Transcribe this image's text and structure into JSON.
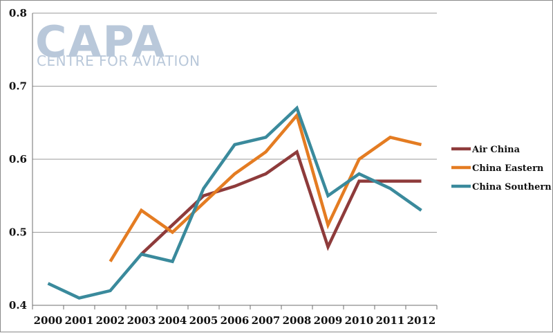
{
  "logo": {
    "name": "CAPA",
    "tagline": "CENTRE FOR AVIATION"
  },
  "chart_data": {
    "type": "line",
    "title": "",
    "xlabel": "",
    "ylabel": "",
    "ylim": [
      0.4,
      0.8
    ],
    "yticks": [
      "0.4",
      "0.5",
      "0.6",
      "0.7",
      "0.8"
    ],
    "grid": true,
    "legend_position": "right",
    "categories": [
      "2000",
      "2001",
      "2002",
      "2003",
      "2004",
      "2005",
      "2006",
      "2007",
      "2008",
      "2009",
      "2010",
      "2011",
      "2012"
    ],
    "series": [
      {
        "name": "Air China",
        "color": "#8e3b3b",
        "values": [
          null,
          null,
          null,
          0.47,
          0.51,
          0.55,
          0.563,
          0.58,
          0.61,
          0.48,
          0.57,
          0.57,
          0.57
        ]
      },
      {
        "name": "China Eastern",
        "color": "#e47c22",
        "values": [
          null,
          null,
          0.46,
          0.53,
          0.5,
          0.54,
          0.58,
          0.61,
          0.66,
          0.51,
          0.6,
          0.63,
          0.62
        ]
      },
      {
        "name": "China Southern",
        "color": "#3a8a9c",
        "values": [
          0.43,
          0.41,
          0.42,
          0.47,
          0.46,
          0.56,
          0.62,
          0.63,
          0.67,
          0.55,
          0.58,
          0.56,
          0.53
        ]
      }
    ]
  }
}
